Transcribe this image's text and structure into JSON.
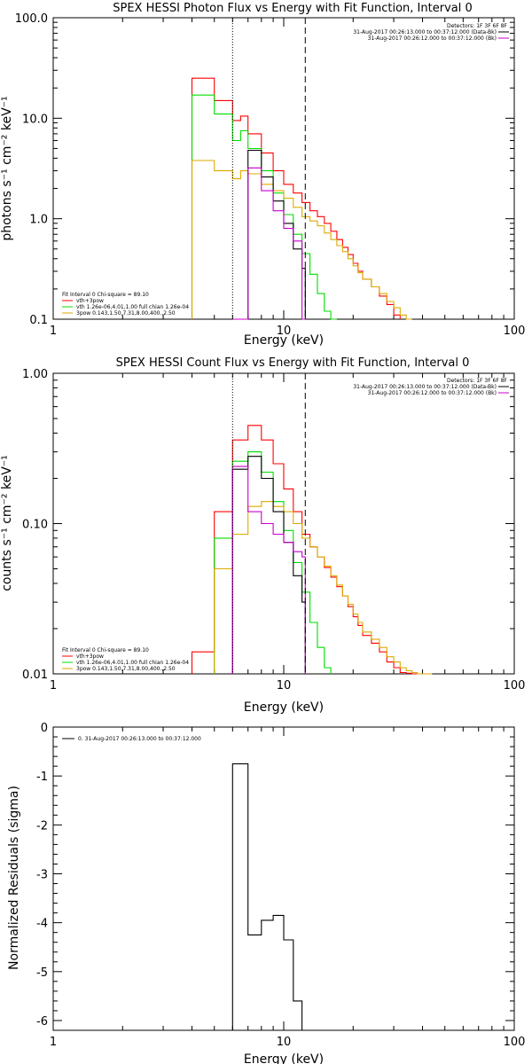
{
  "chart_data": [
    {
      "id": "photon",
      "type": "step",
      "title": "SPEX HESSI Photon Flux vs Energy with Fit Function, Interval 0",
      "xlabel": "Energy (keV)",
      "ylabel": "photons s⁻¹ cm⁻² keV⁻¹",
      "xscale": "log",
      "yscale": "log",
      "xlim": [
        1,
        100
      ],
      "ylim": [
        0.1,
        100
      ],
      "xticks": [
        "1",
        "10",
        "100"
      ],
      "yticks": [
        "0.1",
        "1.0",
        "10.0",
        "100.0"
      ],
      "vlines": [
        {
          "x": 6.0,
          "style": "dotted"
        },
        {
          "x": 12.4,
          "style": "dashed"
        }
      ],
      "info_lines": [
        "Detectors: 1F 3F 6F 8F",
        "31-Aug-2017 00:26:13.000 to 00:37:12.000 (Data-Bk)",
        "31-Aug-2017 00:26:12.000 to 00:37:12.000 (Bk)"
      ],
      "info_colors": [
        "#000000",
        "#000000",
        "#cc00cc"
      ],
      "fit_legend": {
        "header": "Fit Interval 0   Chi-square = 89.10",
        "entries": [
          {
            "label": "vth+3pow",
            "color": "#ff0000"
          },
          {
            "label": "vth 1.26e-06,4.01,1.00  full chian 1.26e-04",
            "color": "#00dd00"
          },
          {
            "label": "3pow 0.143,1.50,7.31,8.00,400.,2.50",
            "color": "#ddaa00"
          }
        ]
      },
      "series": [
        {
          "color": "#ff0000",
          "edges": [
            4.0,
            5.0,
            6.0,
            6.5,
            7.0,
            8.0,
            9.0,
            10.0,
            11.0,
            12.0,
            13.0,
            14.0,
            15.0,
            16.0,
            17.0,
            18.0,
            19.0,
            20.0,
            21.0,
            22.0,
            24.0,
            26.0,
            28.0,
            30.0,
            32.0
          ],
          "values": [
            25,
            15,
            9.5,
            10.5,
            7.0,
            4.5,
            3.0,
            2.2,
            1.8,
            1.45,
            1.2,
            1.05,
            0.9,
            0.75,
            0.62,
            0.52,
            0.44,
            0.36,
            0.3,
            0.25,
            0.21,
            0.17,
            0.14,
            0.11
          ]
        },
        {
          "color": "#00dd00",
          "edges": [
            4.0,
            5.0,
            6.0,
            6.5,
            7.0,
            8.0,
            9.0,
            10.0,
            11.0,
            12.0,
            13.0,
            14.0,
            15.0,
            16.0,
            17.0
          ],
          "values": [
            17,
            11,
            6,
            7.5,
            5.0,
            3.0,
            1.8,
            1.1,
            0.7,
            0.45,
            0.28,
            0.18,
            0.12,
            0.1
          ]
        },
        {
          "color": "#ddaa00",
          "edges": [
            4.0,
            5.0,
            6.0,
            6.5,
            7.0,
            8.0,
            9.0,
            10.0,
            11.0,
            12.0,
            13.0,
            14.0,
            15.0,
            16.0,
            17.0,
            18.0,
            19.0,
            20.0,
            21.0,
            22.0,
            24.0,
            26.0,
            28.0,
            30.0,
            32.0,
            34.0,
            36.0
          ],
          "values": [
            3.8,
            3.0,
            2.5,
            3.0,
            2.8,
            2.2,
            1.9,
            1.6,
            1.3,
            1.05,
            0.95,
            0.85,
            0.72,
            0.62,
            0.54,
            0.47,
            0.4,
            0.34,
            0.29,
            0.25,
            0.21,
            0.18,
            0.15,
            0.13,
            0.11,
            0.1
          ]
        },
        {
          "color": "#000000",
          "edges": [
            7.0,
            8.0,
            9.0,
            10.0,
            11.0,
            12.0,
            12.4
          ],
          "values": [
            4.8,
            2.6,
            1.5,
            0.9,
            0.5,
            0.32
          ]
        },
        {
          "color": "#cc00cc",
          "edges": [
            6.0,
            7.0,
            8.0,
            9.0,
            10.0,
            11.0,
            12.0,
            12.4
          ],
          "values": [
            0.1,
            3.2,
            1.9,
            1.2,
            0.8,
            0.6,
            0.1
          ]
        }
      ]
    },
    {
      "id": "count",
      "type": "step",
      "title": "SPEX HESSI Count Flux vs Energy with Fit Function, Interval 0",
      "xlabel": "Energy (keV)",
      "ylabel": "counts s⁻¹ cm⁻² keV⁻¹",
      "xscale": "log",
      "yscale": "log",
      "xlim": [
        1,
        100
      ],
      "ylim": [
        0.01,
        1.0
      ],
      "xticks": [
        "1",
        "10",
        "100"
      ],
      "yticks": [
        "0.01",
        "0.10",
        "1.00"
      ],
      "vlines": [
        {
          "x": 6.0,
          "style": "dotted"
        },
        {
          "x": 12.4,
          "style": "dashed"
        }
      ],
      "info_lines": [
        "Detectors: 1F 3F 6F 8F",
        "31-Aug-2017 00:26:13.000 to 00:37:12.000 (Data-Bk)",
        "31-Aug-2017 00:26:12.000 to 00:37:12.000 (Bk)"
      ],
      "info_colors": [
        "#000000",
        "#000000",
        "#cc00cc"
      ],
      "fit_legend": {
        "header": "Fit Interval 0   Chi-square = 89.10",
        "entries": [
          {
            "label": "vth+3pow",
            "color": "#ff0000"
          },
          {
            "label": "vth 1.26e-06,4.01,1.00  full chian 1.26e-04",
            "color": "#00dd00"
          },
          {
            "label": "3pow 0.143,1.50,7.31,8.00,400.,2.50",
            "color": "#ddaa00"
          }
        ]
      },
      "series": [
        {
          "color": "#ff0000",
          "edges": [
            4.0,
            5.0,
            6.0,
            7.0,
            8.0,
            9.0,
            10.0,
            11.0,
            12.0,
            13.0,
            14.0,
            15.0,
            16.0,
            17.0,
            18.0,
            19.0,
            20.0,
            21.0,
            22.0,
            24.0,
            26.0,
            28.0,
            30.0,
            32.0,
            34.0,
            36.0,
            38.0
          ],
          "values": [
            0.014,
            0.12,
            0.36,
            0.45,
            0.36,
            0.25,
            0.17,
            0.12,
            0.085,
            0.07,
            0.06,
            0.051,
            0.044,
            0.038,
            0.033,
            0.028,
            0.024,
            0.021,
            0.018,
            0.016,
            0.014,
            0.012,
            0.011,
            0.0102,
            0.0101,
            0.01
          ]
        },
        {
          "color": "#00dd00",
          "edges": [
            5.0,
            6.0,
            7.0,
            8.0,
            9.0,
            10.0,
            11.0,
            12.0,
            13.0,
            14.0,
            15.0,
            16.0
          ],
          "values": [
            0.08,
            0.26,
            0.3,
            0.22,
            0.14,
            0.09,
            0.055,
            0.035,
            0.022,
            0.015,
            0.011
          ]
        },
        {
          "color": "#ddaa00",
          "edges": [
            5.0,
            6.0,
            7.0,
            8.0,
            9.0,
            10.0,
            11.0,
            12.0,
            13.0,
            14.0,
            15.0,
            16.0,
            17.0,
            18.0,
            19.0,
            20.0,
            21.0,
            22.0,
            24.0,
            26.0,
            28.0,
            30.0,
            32.0,
            34.0,
            36.0,
            38.0,
            40.0,
            44.0
          ],
          "values": [
            0.05,
            0.085,
            0.13,
            0.14,
            0.13,
            0.12,
            0.1,
            0.08,
            0.07,
            0.06,
            0.052,
            0.045,
            0.039,
            0.033,
            0.029,
            0.025,
            0.022,
            0.019,
            0.017,
            0.015,
            0.013,
            0.012,
            0.011,
            0.0105,
            0.0102,
            0.01,
            0.01
          ]
        },
        {
          "color": "#000000",
          "edges": [
            6.0,
            7.0,
            8.0,
            9.0,
            10.0,
            11.0,
            12.0,
            12.4
          ],
          "values": [
            0.23,
            0.28,
            0.2,
            0.12,
            0.075,
            0.045,
            0.03
          ]
        },
        {
          "color": "#cc00cc",
          "edges": [
            6.0,
            7.0,
            8.0,
            9.0,
            10.0,
            11.0,
            12.0,
            12.4
          ],
          "values": [
            0.24,
            0.12,
            0.1,
            0.085,
            0.075,
            0.065,
            0.06
          ]
        }
      ]
    },
    {
      "id": "resid",
      "type": "step",
      "title": "",
      "xlabel": "Energy (keV)",
      "ylabel": "Normalized Residuals (sigma)",
      "xscale": "log",
      "yscale": "linear",
      "xlim": [
        1,
        100
      ],
      "ylim": [
        -6.2,
        0
      ],
      "xticks": [
        "1",
        "10",
        "100"
      ],
      "yticks": [
        "-6",
        "-5",
        "-4",
        "-3",
        "-2",
        "-1",
        "0"
      ],
      "legend_entry": "0. 31-Aug-2017 00:26:13.000 to 00:37:12.000",
      "series": [
        {
          "color": "#000000",
          "edges": [
            6.0,
            7.0,
            8.0,
            9.0,
            10.0,
            11.0,
            12.0
          ],
          "values": [
            -0.75,
            -4.25,
            -3.95,
            -3.85,
            -4.35,
            -5.6
          ]
        }
      ]
    }
  ]
}
